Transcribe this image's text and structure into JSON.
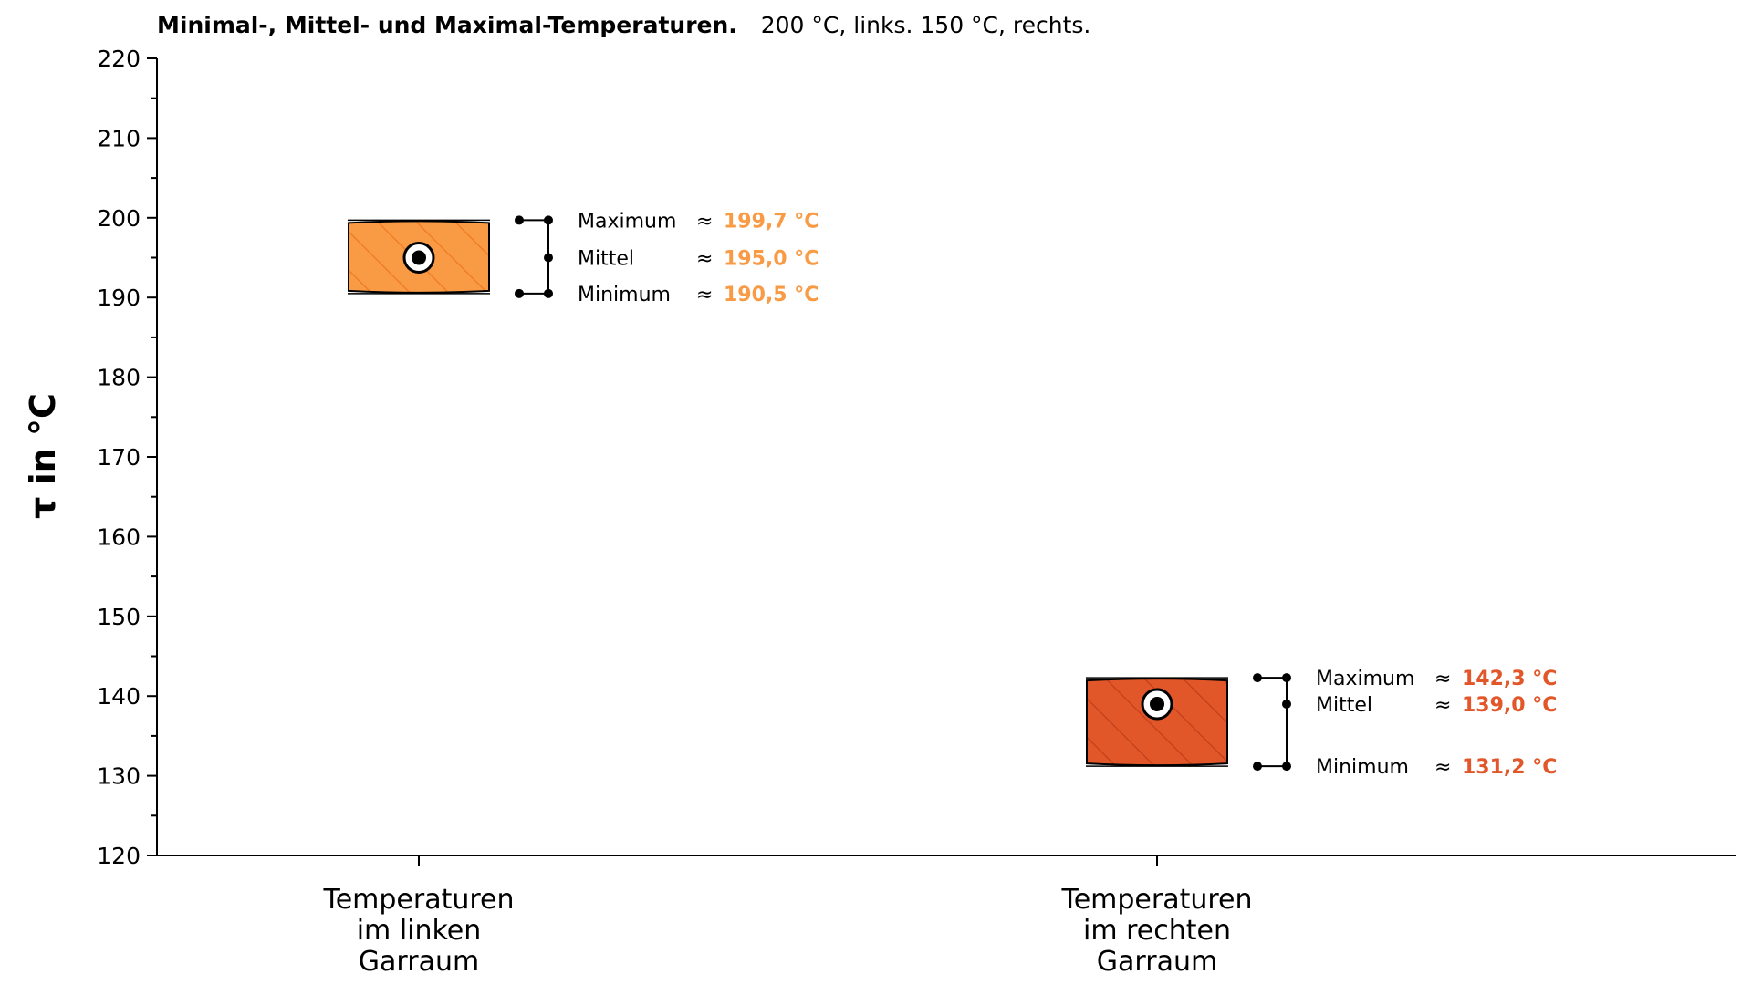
{
  "chart_data": {
    "type": "box",
    "title": "Minimal-, Mittel- und Maximal-Temperaturen.",
    "subtitle": "200 °C, links. 150 °C, rechts.",
    "ylabel": "τ in °C",
    "xlabel": "",
    "ylim": [
      120,
      220
    ],
    "ymajor_step": 10,
    "yminor_step": 5,
    "grid": false,
    "categories": [
      [
        "Temperaturen",
        "im linken",
        "Garraum"
      ],
      [
        "Temperaturen",
        "im rechten",
        "Garraum"
      ]
    ],
    "series": [
      {
        "min": 190.5,
        "mean": 195.0,
        "max": 199.7,
        "color": "#f99a45",
        "hatch": "#ee7a1e",
        "labels": {
          "max": "Maximum",
          "mean": "Mittel",
          "min": "Minimum"
        },
        "approx": "≈",
        "value_texts": {
          "max": "199,7 °C",
          "mean": "195,0 °C",
          "min": "190,5 °C"
        }
      },
      {
        "min": 131.2,
        "mean": 139.0,
        "max": 142.3,
        "color": "#e2572a",
        "hatch": "#c0401a",
        "labels": {
          "max": "Maximum",
          "mean": "Mittel",
          "min": "Minimum"
        },
        "approx": "≈",
        "value_texts": {
          "max": "142,3 °C",
          "mean": "139,0 °C",
          "min": "131,2 °C"
        }
      }
    ]
  }
}
